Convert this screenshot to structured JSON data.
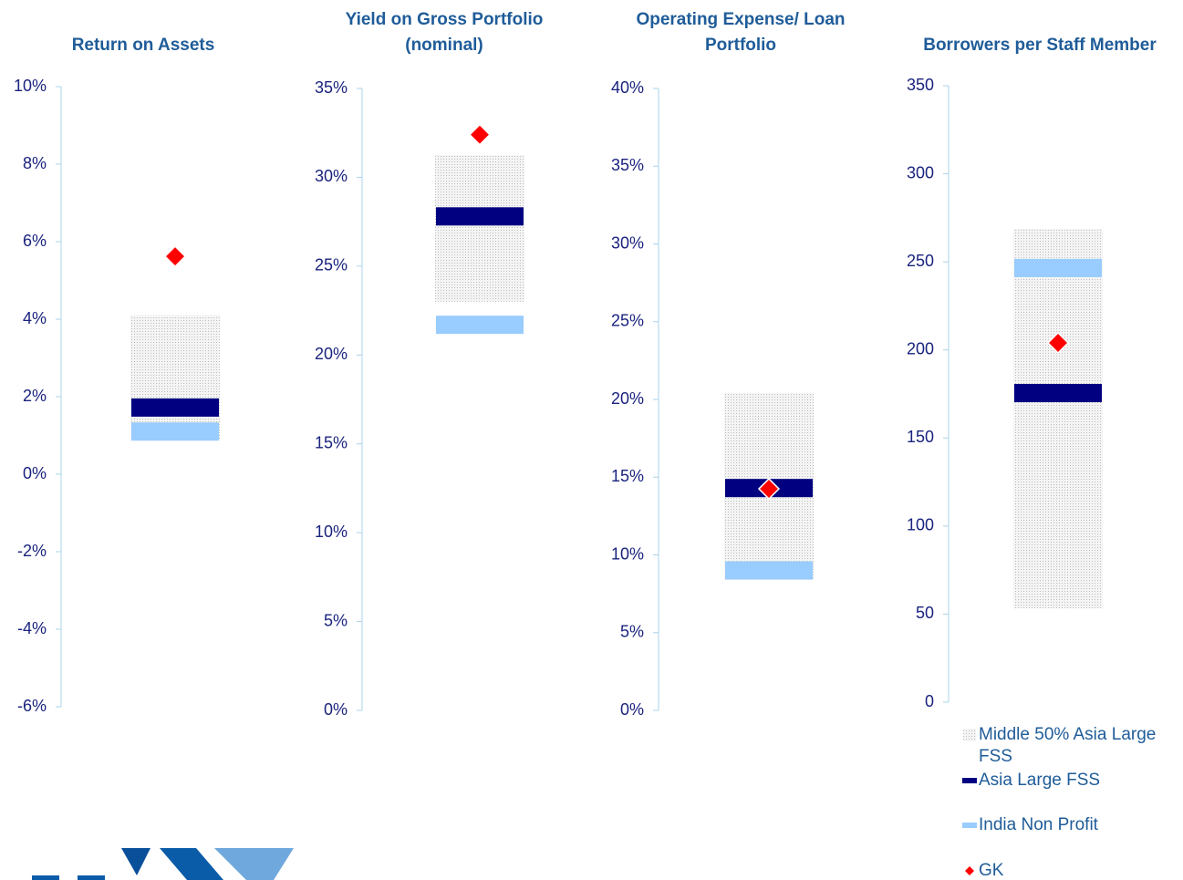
{
  "chart_data": [
    {
      "type": "range",
      "title": "Return on Assets",
      "ylim": [
        -6,
        10
      ],
      "yticks": [
        {
          "value": -6,
          "label": "-6%"
        },
        {
          "value": -4,
          "label": "-4%"
        },
        {
          "value": -2,
          "label": "-2%"
        },
        {
          "value": 0,
          "label": "0%"
        },
        {
          "value": 2,
          "label": "2%"
        },
        {
          "value": 4,
          "label": "4%"
        },
        {
          "value": 6,
          "label": "6%"
        },
        {
          "value": 8,
          "label": "8%"
        },
        {
          "value": 10,
          "label": "10%"
        }
      ],
      "middle_50": [
        0.87,
        4.1
      ],
      "asia_large_fss": 1.72,
      "india_non_profit": 1.1,
      "gk": 5.62
    },
    {
      "type": "range",
      "title": "Yield on Gross Portfolio (nominal)",
      "ylim": [
        0,
        35
      ],
      "yticks": [
        {
          "value": 0,
          "label": "0%"
        },
        {
          "value": 5,
          "label": "5%"
        },
        {
          "value": 10,
          "label": "10%"
        },
        {
          "value": 15,
          "label": "15%"
        },
        {
          "value": 20,
          "label": "20%"
        },
        {
          "value": 25,
          "label": "25%"
        },
        {
          "value": 30,
          "label": "30%"
        },
        {
          "value": 35,
          "label": "35%"
        }
      ],
      "middle_50": [
        23.0,
        31.25
      ],
      "asia_large_fss": 27.8,
      "india_non_profit": 21.7,
      "gk": 32.4
    },
    {
      "type": "range",
      "title": "Operating Expense/ Loan Portfolio",
      "ylim": [
        0,
        40
      ],
      "yticks": [
        {
          "value": 0,
          "label": "0%"
        },
        {
          "value": 5,
          "label": "5%"
        },
        {
          "value": 10,
          "label": "10%"
        },
        {
          "value": 15,
          "label": "15%"
        },
        {
          "value": 20,
          "label": "20%"
        },
        {
          "value": 25,
          "label": "25%"
        },
        {
          "value": 30,
          "label": "30%"
        },
        {
          "value": 35,
          "label": "35%"
        },
        {
          "value": 40,
          "label": "40%"
        }
      ],
      "middle_50": [
        8.4,
        20.4
      ],
      "asia_large_fss": 14.3,
      "india_non_profit": 9.0,
      "gk": 14.25
    },
    {
      "type": "range",
      "title": "Borrowers per Staff Member",
      "ylim": [
        0,
        350
      ],
      "yticks": [
        0,
        50,
        100,
        150,
        200,
        250,
        300,
        350
      ],
      "middle_50": [
        53.3,
        268.8
      ],
      "asia_large_fss": 175.5,
      "india_non_profit": 246.5,
      "gk": 204
    }
  ],
  "legend": [
    {
      "name": "Middle 50% Asia Large FSS",
      "color": "#d9d9d9"
    },
    {
      "name": "Asia Large FSS",
      "color": "#000080"
    },
    {
      "name": "India Non Profit",
      "color": "#99ccff"
    },
    {
      "name": "GK",
      "color": "#ff0000"
    }
  ]
}
